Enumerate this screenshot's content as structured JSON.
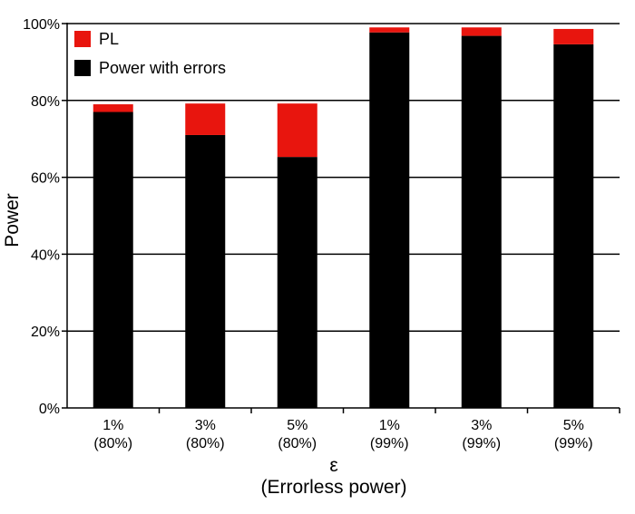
{
  "chart_data": {
    "type": "bar",
    "stacked": true,
    "categories": [
      {
        "line1": "1%",
        "line2": "(80%)"
      },
      {
        "line1": "3%",
        "line2": "(80%)"
      },
      {
        "line1": "5%",
        "line2": "(80%)"
      },
      {
        "line1": "1%",
        "line2": "(99%)"
      },
      {
        "line1": "3%",
        "line2": "(99%)"
      },
      {
        "line1": "5%",
        "line2": "(99%)"
      }
    ],
    "series": [
      {
        "name": "Power with errors",
        "color": "#000000",
        "values": [
          77,
          71,
          65.3,
          97.7,
          96.8,
          94.6
        ]
      },
      {
        "name": "PL",
        "color": "#e8150e",
        "values": [
          2,
          8.2,
          13.9,
          1.3,
          2.2,
          4
        ]
      }
    ],
    "legend_order": [
      "PL",
      "Power with errors"
    ],
    "legend_position": "top-left",
    "ylabel": "Power",
    "xlabel_line1": "ε",
    "xlabel_line2": "(Errorless power)",
    "ylim": [
      0,
      100
    ],
    "yticks": [
      0,
      20,
      40,
      60,
      80,
      100
    ],
    "ytick_labels": [
      "0%",
      "20%",
      "40%",
      "60%",
      "80%",
      "100%"
    ],
    "grid": "horizontal"
  }
}
